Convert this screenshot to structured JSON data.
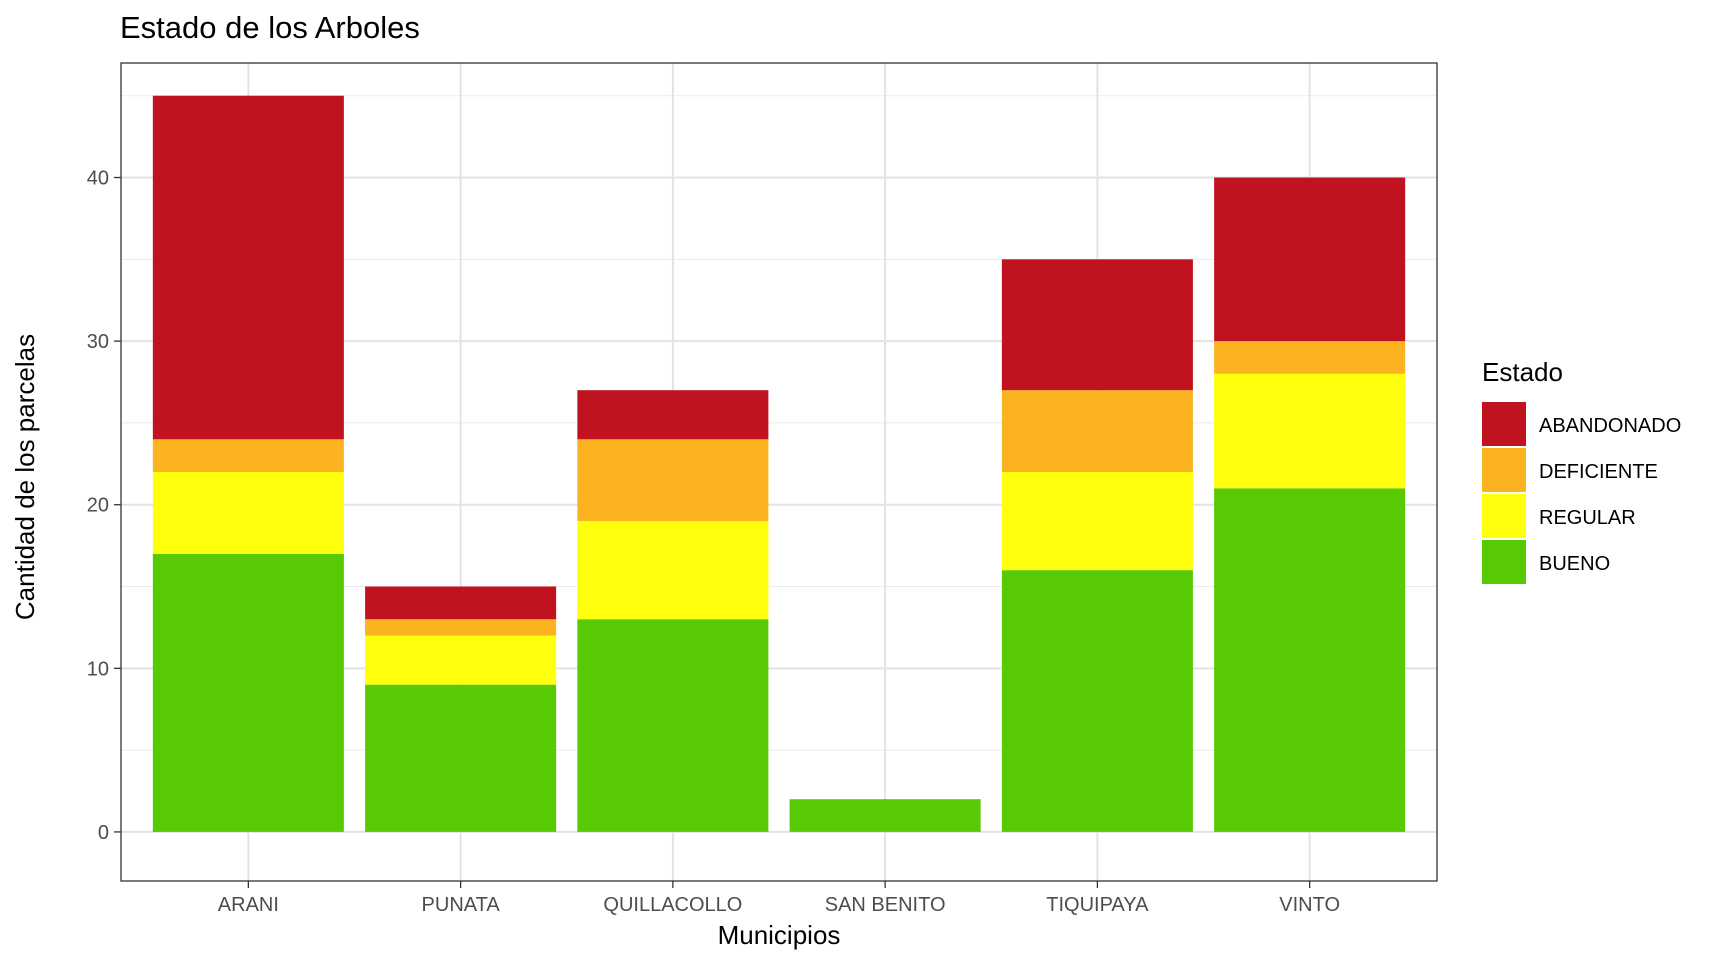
{
  "chart_data": {
    "type": "bar",
    "stacked": true,
    "title": "Estado de los Arboles",
    "xlabel": "Municipios",
    "ylabel": "Cantidad de los parcelas",
    "categories": [
      "ARANI",
      "PUNATA",
      "QUILLACOLLO",
      "SAN BENITO",
      "TIQUIPAYA",
      "VINTO"
    ],
    "ylim": [
      -3,
      47
    ],
    "yticks": [
      0,
      10,
      20,
      30,
      40
    ],
    "ytick_labels": [
      "0",
      "10",
      "20",
      "30",
      "40"
    ],
    "grid": true,
    "legend_position": "right",
    "legend_title": "Estado",
    "stack_order": [
      "BUENO",
      "REGULAR",
      "DEFICIENTE",
      "ABANDONADO"
    ],
    "legend_order": [
      "ABANDONADO",
      "DEFICIENTE",
      "REGULAR",
      "BUENO"
    ],
    "series": [
      {
        "name": "BUENO",
        "color": "#58C905",
        "values": [
          17,
          9,
          13,
          2,
          16,
          21
        ]
      },
      {
        "name": "REGULAR",
        "color": "#FFFF0E",
        "values": [
          5,
          3,
          6,
          0,
          6,
          7
        ]
      },
      {
        "name": "DEFICIENTE",
        "color": "#FBB320",
        "values": [
          2,
          1,
          5,
          0,
          5,
          2
        ]
      },
      {
        "name": "ABANDONADO",
        "color": "#C1121F",
        "values": [
          21,
          2,
          3,
          0,
          8,
          10
        ]
      }
    ]
  }
}
